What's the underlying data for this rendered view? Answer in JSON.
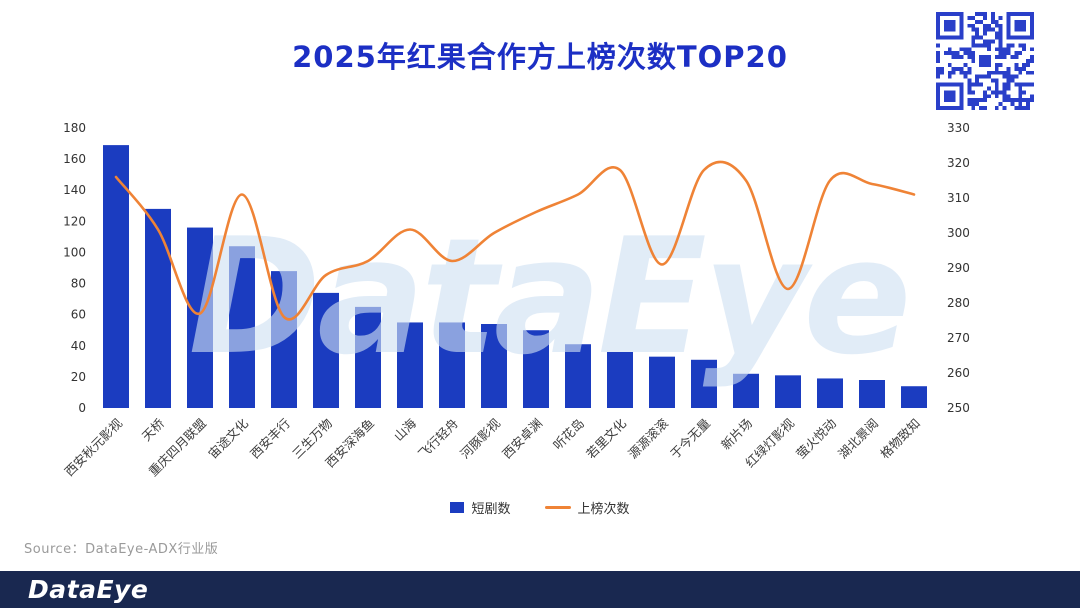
{
  "header": {
    "title": "2025年红果合作方上榜次数TOP20"
  },
  "source": "Source：DataEye-ADX行业版",
  "footer": {
    "logo": "DataEye"
  },
  "watermark": "DataEye",
  "qr_icon": "qr-code",
  "colors": {
    "title": "#1c2fc4",
    "bar": "#1b3cc0",
    "line": "#ef8336",
    "footer_bg": "#192850",
    "watermark": "#cfe0f2",
    "qr": "#2a3fc9"
  },
  "chart_data": {
    "type": "bar+line combo",
    "title": "2025年红果合作方上榜次数TOP20",
    "categories": [
      "西安秋元影视",
      "天桥",
      "重庆四月联盟",
      "宙途文化",
      "西安丰行",
      "三生万物",
      "西安深海鱼",
      "山海",
      "飞行轻舟",
      "河豚影视",
      "西安卓渊",
      "听花岛",
      "若里文化",
      "源源滚滚",
      "于今无量",
      "新片场",
      "红绿灯影视",
      "萤火悦动",
      "湖北景阅",
      "格物致知"
    ],
    "series": [
      {
        "name": "短剧数",
        "type": "bar",
        "axis": "left",
        "values": [
          169,
          128,
          116,
          104,
          88,
          74,
          65,
          55,
          55,
          54,
          50,
          41,
          36,
          33,
          31,
          22,
          21,
          19,
          18,
          14
        ]
      },
      {
        "name": "上榜次数",
        "type": "line",
        "axis": "right",
        "values": [
          316,
          301,
          277,
          311,
          276,
          288,
          292,
          301,
          292,
          300,
          306,
          311,
          318,
          291,
          318,
          315,
          284,
          315,
          314,
          311
        ]
      }
    ],
    "left_axis": {
      "min": 0,
      "max": 180,
      "step": 20,
      "ticks": [
        "0",
        "20",
        "40",
        "60",
        "80",
        "100",
        "120",
        "140",
        "160",
        "180"
      ]
    },
    "right_axis": {
      "min": 250,
      "max": 330,
      "step": 10,
      "ticks": [
        "250",
        "260",
        "270",
        "280",
        "290",
        "300",
        "310",
        "320",
        "330"
      ]
    },
    "legend": [
      "短剧数",
      "上榜次数"
    ],
    "legend_position": "bottom-center",
    "grid": false
  }
}
